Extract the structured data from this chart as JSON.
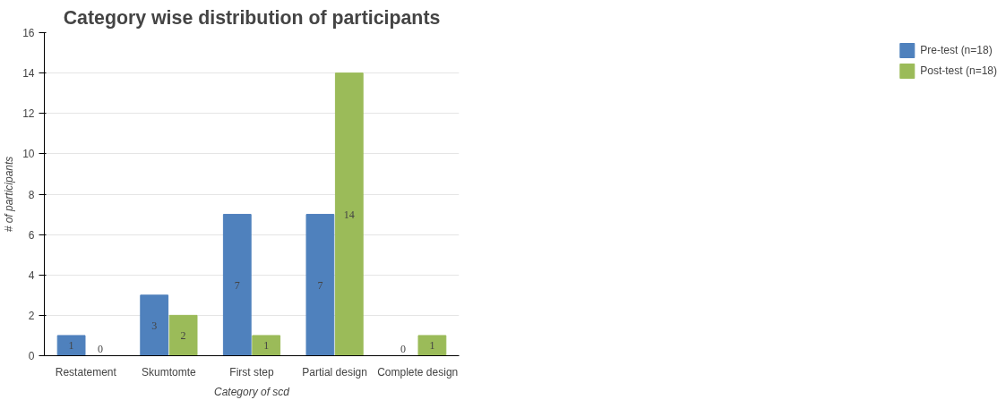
{
  "chart_data": {
    "type": "bar",
    "title": "Category wise distribution of participants",
    "xlabel": "Category of scd",
    "ylabel": "# of participants",
    "categories": [
      "Restatement",
      "Skumtomte",
      "First step",
      "Partial design",
      "Complete design"
    ],
    "series": [
      {
        "name": "Pre-test (n=18)",
        "color": "#4f81bd",
        "values": [
          1,
          3,
          7,
          7,
          0
        ]
      },
      {
        "name": "Post-test (n=18)",
        "color": "#9bbb59",
        "values": [
          0,
          2,
          1,
          14,
          1
        ]
      }
    ],
    "ylim": [
      0,
      16
    ],
    "yticks": [
      0,
      2,
      4,
      6,
      8,
      10,
      12,
      14,
      16
    ],
    "grid": "y",
    "legend": "right",
    "data_labels": true
  }
}
